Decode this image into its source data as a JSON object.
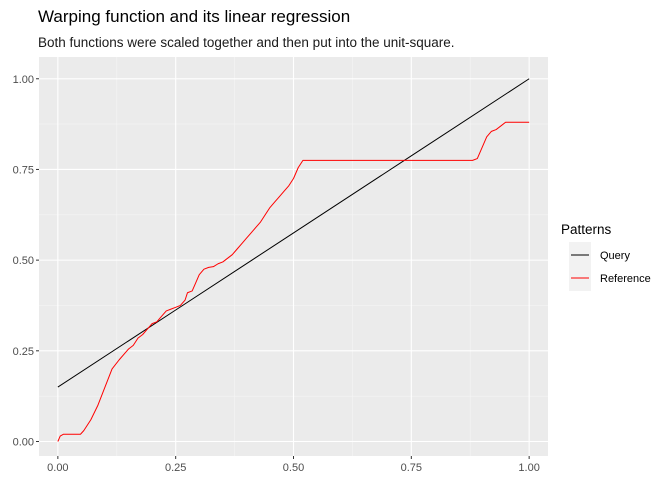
{
  "chart_data": {
    "type": "line",
    "title": "Warping function and its linear regression",
    "subtitle": "Both functions were scaled together and then put into the unit-square.",
    "xlabel": "",
    "ylabel": "",
    "xlim": [
      -0.04,
      1.04
    ],
    "ylim": [
      -0.04,
      1.06
    ],
    "grid": true,
    "x_ticks": [
      0.0,
      0.25,
      0.5,
      0.75,
      1.0
    ],
    "x_tick_labels": [
      "0.00",
      "0.25",
      "0.50",
      "0.75",
      "1.00"
    ],
    "y_ticks": [
      0.0,
      0.25,
      0.5,
      0.75,
      1.0
    ],
    "y_tick_labels": [
      "0.00",
      "0.25",
      "0.50",
      "0.75",
      "1.00"
    ],
    "legend": {
      "title": "Patterns",
      "placement": "right",
      "entries": [
        "Query",
        "Reference"
      ]
    },
    "series": [
      {
        "name": "Query",
        "color": "#000000",
        "points": [
          [
            0.0,
            0.15
          ],
          [
            0.25,
            0.3625
          ],
          [
            0.5,
            0.575
          ],
          [
            0.75,
            0.7875
          ],
          [
            1.0,
            1.0
          ]
        ]
      },
      {
        "name": "Reference",
        "color": "#ff0000",
        "points": [
          [
            0.0,
            0.0
          ],
          [
            0.005,
            0.015
          ],
          [
            0.012,
            0.02
          ],
          [
            0.03,
            0.02
          ],
          [
            0.048,
            0.02
          ],
          [
            0.055,
            0.03
          ],
          [
            0.07,
            0.06
          ],
          [
            0.085,
            0.1
          ],
          [
            0.1,
            0.15
          ],
          [
            0.115,
            0.2
          ],
          [
            0.13,
            0.225
          ],
          [
            0.14,
            0.24
          ],
          [
            0.15,
            0.255
          ],
          [
            0.16,
            0.265
          ],
          [
            0.17,
            0.285
          ],
          [
            0.18,
            0.295
          ],
          [
            0.19,
            0.31
          ],
          [
            0.2,
            0.325
          ],
          [
            0.21,
            0.33
          ],
          [
            0.22,
            0.345
          ],
          [
            0.23,
            0.36
          ],
          [
            0.24,
            0.365
          ],
          [
            0.25,
            0.37
          ],
          [
            0.26,
            0.375
          ],
          [
            0.27,
            0.39
          ],
          [
            0.275,
            0.41
          ],
          [
            0.285,
            0.415
          ],
          [
            0.29,
            0.43
          ],
          [
            0.3,
            0.46
          ],
          [
            0.31,
            0.475
          ],
          [
            0.32,
            0.48
          ],
          [
            0.33,
            0.482
          ],
          [
            0.34,
            0.49
          ],
          [
            0.35,
            0.495
          ],
          [
            0.36,
            0.505
          ],
          [
            0.37,
            0.515
          ],
          [
            0.38,
            0.53
          ],
          [
            0.39,
            0.545
          ],
          [
            0.4,
            0.56
          ],
          [
            0.41,
            0.575
          ],
          [
            0.42,
            0.59
          ],
          [
            0.43,
            0.605
          ],
          [
            0.44,
            0.625
          ],
          [
            0.45,
            0.645
          ],
          [
            0.46,
            0.66
          ],
          [
            0.47,
            0.675
          ],
          [
            0.48,
            0.69
          ],
          [
            0.49,
            0.705
          ],
          [
            0.5,
            0.725
          ],
          [
            0.51,
            0.755
          ],
          [
            0.52,
            0.775
          ],
          [
            0.55,
            0.775
          ],
          [
            0.6,
            0.775
          ],
          [
            0.7,
            0.775
          ],
          [
            0.8,
            0.775
          ],
          [
            0.88,
            0.775
          ],
          [
            0.89,
            0.78
          ],
          [
            0.9,
            0.81
          ],
          [
            0.91,
            0.84
          ],
          [
            0.92,
            0.855
          ],
          [
            0.93,
            0.86
          ],
          [
            0.94,
            0.87
          ],
          [
            0.95,
            0.88
          ],
          [
            0.97,
            0.88
          ],
          [
            1.0,
            0.88
          ]
        ]
      }
    ]
  }
}
